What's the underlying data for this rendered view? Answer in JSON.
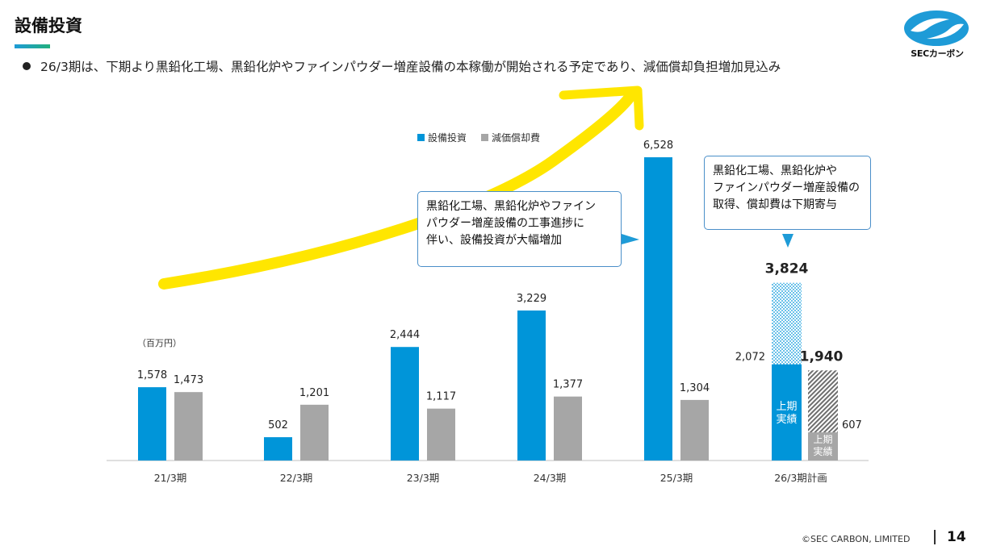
{
  "header": {
    "title": "設備投資",
    "bullet": "26/3期は、下期より黒鉛化工場、黒鉛化炉やファインパウダー増産設備の本稼働が開始される予定であり、減価償却負担増加見込み"
  },
  "logo": {
    "text": "SECカーボン",
    "icon": "sec-carbon-logo-icon"
  },
  "colors": {
    "capex": "#0095d9",
    "depreciation": "#a6a6a6",
    "accent_rule": "#1e9bd7",
    "highlight": "#ffe600",
    "callout_border": "#4a8fc9"
  },
  "callouts": {
    "left": [
      "黒鉛化工場、黒鉛化炉やファイン",
      "パウダー増産設備の工事進捗に",
      "伴い、設備投資が大幅増加"
    ],
    "right": [
      "黒鉛化工場、黒鉛化炉や",
      "ファインパウダー増産設備の",
      "取得、償却費は下期寄与"
    ]
  },
  "chart_data": {
    "type": "bar",
    "unit_label": "（百万円）",
    "categories": [
      "21/3期",
      "22/3期",
      "23/3期",
      "24/3期",
      "25/3期",
      "26/3期計画"
    ],
    "series": [
      {
        "name": "設備投資",
        "values": [
          1578,
          502,
          2444,
          3229,
          6528,
          3824
        ]
      },
      {
        "name": "減価償却費",
        "values": [
          1473,
          1201,
          1117,
          1377,
          1304,
          1940
        ]
      }
    ],
    "value_labels": {
      "設備投資": [
        "1,578",
        "502",
        "2,444",
        "3,229",
        "6,528",
        "3,824"
      ],
      "減価償却費": [
        "1,473",
        "1,201",
        "1,117",
        "1,377",
        "1,304",
        "1,940"
      ]
    },
    "plan_breakdown": {
      "capex_first_half_actual": 2072,
      "capex_first_half_label": "2,072",
      "depreciation_first_half_actual": 607,
      "depreciation_first_half_label": "607",
      "first_half_actual_text": "上期\n実績"
    },
    "legend": [
      "設備投資",
      "減価償却費"
    ],
    "legend_position": "top-center",
    "ylim": [
      0,
      6800
    ],
    "grid": false
  },
  "footer": {
    "copyright": "©SEC CARBON, LIMITED",
    "page": "14"
  }
}
